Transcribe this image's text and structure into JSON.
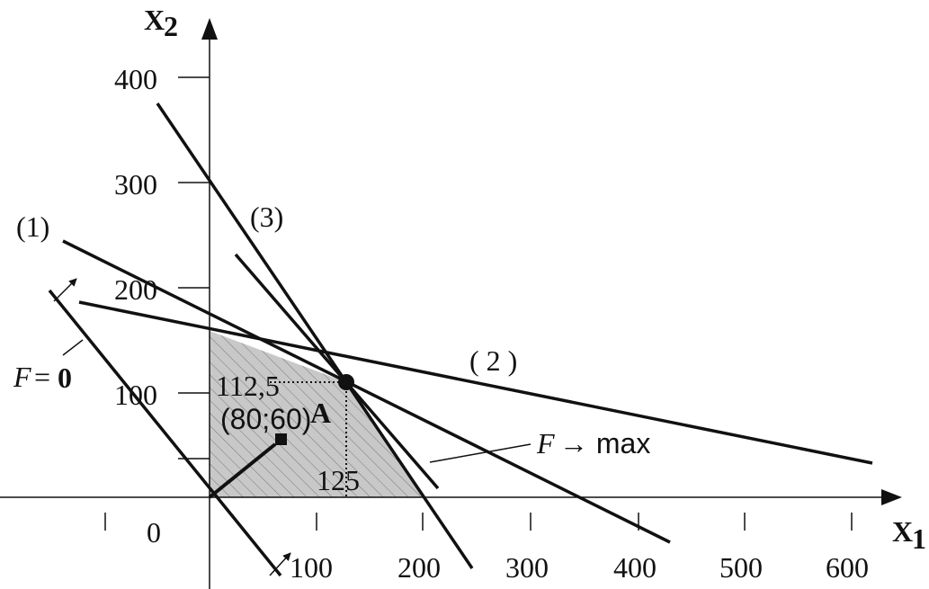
{
  "axes": {
    "x_label": "X",
    "x_sub": "1",
    "y_label": "X",
    "y_sub": "2",
    "origin": "0",
    "x_ticks": [
      "100",
      "200",
      "300",
      "400",
      "500",
      "600"
    ],
    "y_ticks": [
      "100",
      "200",
      "300",
      "400"
    ]
  },
  "labels": {
    "line1": "(1)",
    "line2": "( 2 )",
    "line3": "(3)",
    "f_zero_f": "F",
    "f_zero_eq": "=",
    "f_zero_val": "0",
    "f_max_f": "F",
    "f_max_rest": "→ max",
    "point": "A",
    "x2_value": "112,5",
    "x1_value": "125",
    "gradient": "(80;60)"
  }
}
